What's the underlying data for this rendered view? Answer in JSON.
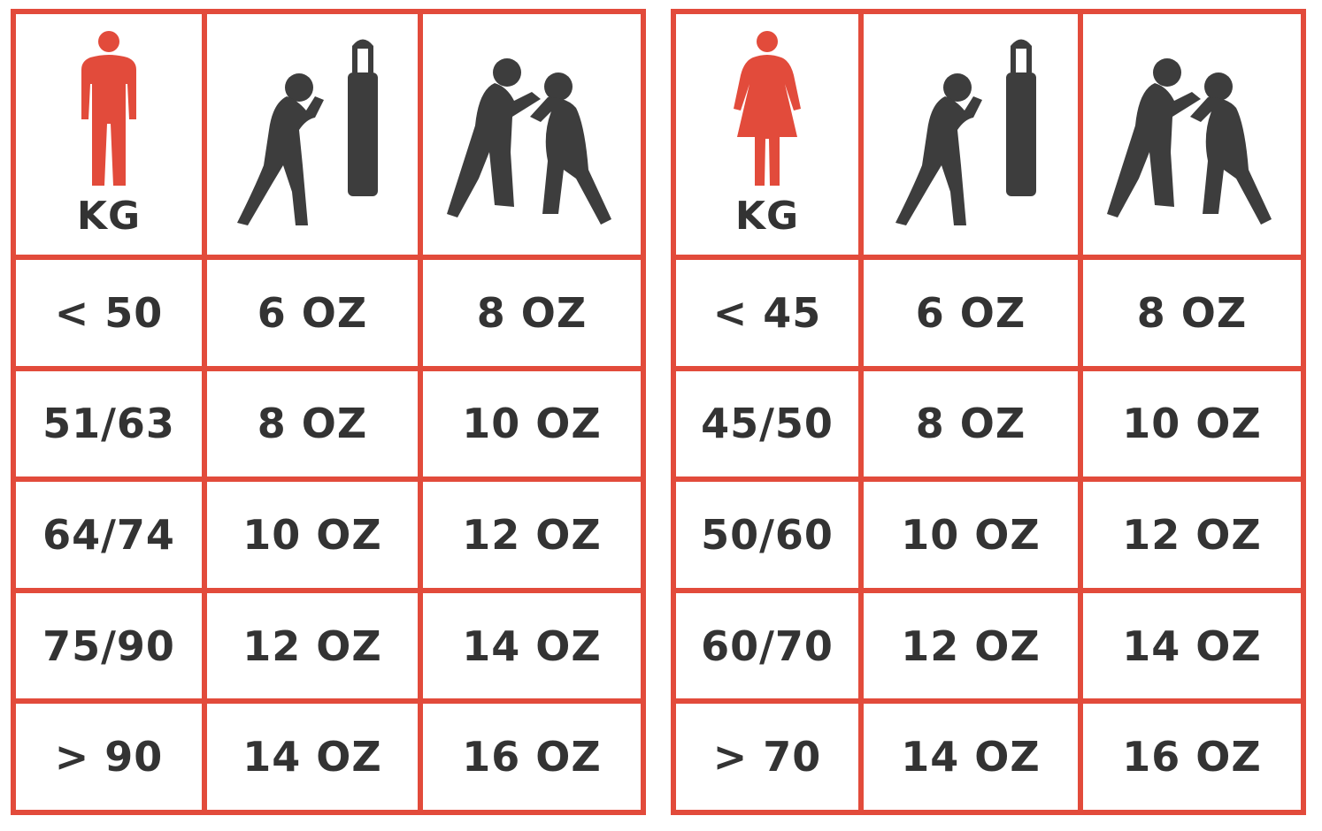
{
  "colors": {
    "accent": "#e24b3b",
    "text": "#333333"
  },
  "tables": [
    {
      "gender_icon": "man-icon",
      "header": {
        "weight_unit": "KG",
        "col2_icon": "boxer-punching-bag-icon",
        "col3_icon": "sparring-boxers-icon"
      },
      "rows": [
        [
          "< 50",
          "6 OZ",
          "8 OZ"
        ],
        [
          "51/63",
          "8 OZ",
          "10 OZ"
        ],
        [
          "64/74",
          "10 OZ",
          "12 OZ"
        ],
        [
          "75/90",
          "12 OZ",
          "14 OZ"
        ],
        [
          "> 90",
          "14 OZ",
          "16 OZ"
        ]
      ]
    },
    {
      "gender_icon": "woman-icon",
      "header": {
        "weight_unit": "KG",
        "col2_icon": "boxer-punching-bag-icon",
        "col3_icon": "sparring-boxers-icon"
      },
      "rows": [
        [
          "< 45",
          "6 OZ",
          "8 OZ"
        ],
        [
          "45/50",
          "8 OZ",
          "10 OZ"
        ],
        [
          "50/60",
          "10 OZ",
          "12 OZ"
        ],
        [
          "60/70",
          "12 OZ",
          "14 OZ"
        ],
        [
          "> 70",
          "14 OZ",
          "16 OZ"
        ]
      ]
    }
  ]
}
